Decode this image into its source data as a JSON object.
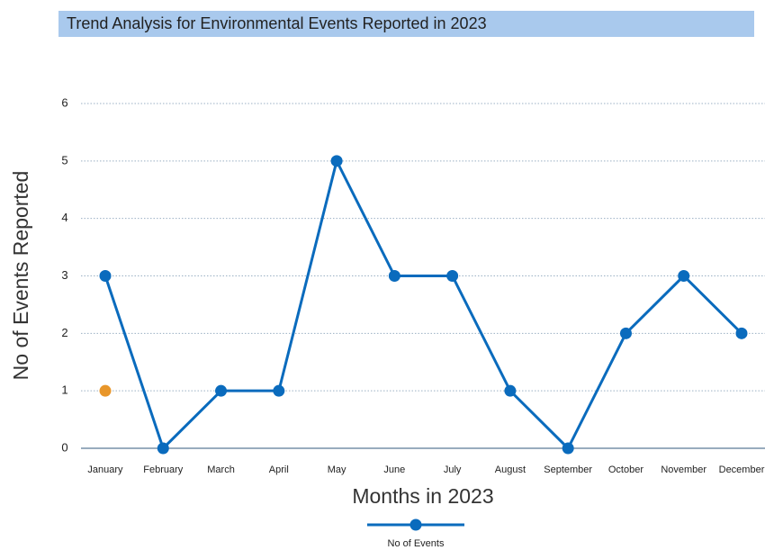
{
  "chart_data": {
    "type": "line",
    "title": "Trend Analysis for Environmental Events Reported in 2023",
    "xlabel": "Months in 2023",
    "ylabel": "No of Events Reported",
    "categories": [
      "January",
      "February",
      "March",
      "April",
      "May",
      "June",
      "July",
      "August",
      "September",
      "October",
      "November",
      "December"
    ],
    "series": [
      {
        "name": "No of Events",
        "color": "#0a6bbd",
        "values": [
          3,
          0,
          1,
          1,
          5,
          3,
          3,
          1,
          0,
          2,
          3,
          2
        ]
      },
      {
        "color": "#e8962a",
        "values": [
          1,
          null,
          null,
          null,
          null,
          null,
          null,
          null,
          null,
          null,
          null,
          null
        ]
      }
    ],
    "ylim": [
      0,
      6
    ],
    "yticks": [
      0,
      1,
      2,
      3,
      4,
      5,
      6
    ],
    "grid": true,
    "legend": "bottom"
  }
}
